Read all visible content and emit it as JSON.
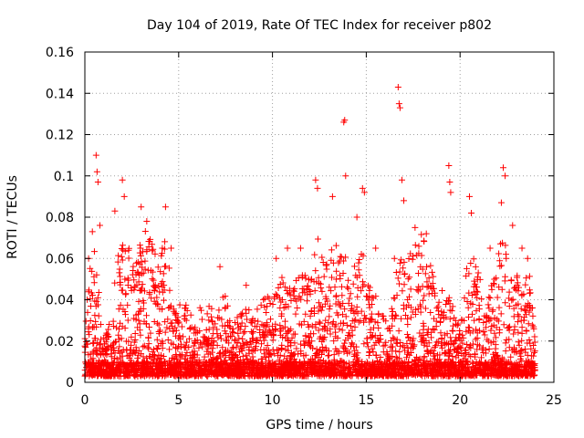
{
  "chart_data": {
    "type": "scatter",
    "title": "Day 104 of 2019, Rate Of TEC Index for receiver p802",
    "xlabel": "GPS time / hours",
    "ylabel": "ROTI / TECUs",
    "xlim": [
      0,
      25
    ],
    "ylim": [
      0,
      0.16
    ],
    "x_ticks": [
      0,
      5,
      10,
      15,
      20,
      25
    ],
    "x_tick_labels": [
      "0",
      "5",
      "10",
      "15",
      "20",
      "25"
    ],
    "y_ticks": [
      0,
      0.02,
      0.04,
      0.06,
      0.08,
      0.1,
      0.12,
      0.14,
      0.16
    ],
    "y_tick_labels": [
      "0",
      "0.02",
      "0.04",
      "0.06",
      "0.08",
      "0.1",
      "0.12",
      "0.14",
      "0.16"
    ],
    "grid": true,
    "marker": "+",
    "series": [
      {
        "name": "ROTI",
        "color": "#ff0000",
        "x_range": [
          0,
          24
        ],
        "baseline_range": [
          0.003,
          0.01
        ],
        "points": [
          {
            "x": 0.2,
            "y": 0.06
          },
          {
            "x": 0.4,
            "y": 0.073
          },
          {
            "x": 0.6,
            "y": 0.11
          },
          {
            "x": 0.65,
            "y": 0.102
          },
          {
            "x": 0.7,
            "y": 0.097
          },
          {
            "x": 0.8,
            "y": 0.076
          },
          {
            "x": 1.6,
            "y": 0.083
          },
          {
            "x": 2.0,
            "y": 0.098
          },
          {
            "x": 2.1,
            "y": 0.09
          },
          {
            "x": 3.0,
            "y": 0.085
          },
          {
            "x": 3.3,
            "y": 0.078
          },
          {
            "x": 4.3,
            "y": 0.085
          },
          {
            "x": 4.6,
            "y": 0.065
          },
          {
            "x": 7.2,
            "y": 0.056
          },
          {
            "x": 8.6,
            "y": 0.047
          },
          {
            "x": 10.2,
            "y": 0.06
          },
          {
            "x": 10.8,
            "y": 0.065
          },
          {
            "x": 11.5,
            "y": 0.065
          },
          {
            "x": 12.3,
            "y": 0.098
          },
          {
            "x": 12.4,
            "y": 0.094
          },
          {
            "x": 13.2,
            "y": 0.09
          },
          {
            "x": 13.8,
            "y": 0.126
          },
          {
            "x": 13.85,
            "y": 0.127
          },
          {
            "x": 13.9,
            "y": 0.1
          },
          {
            "x": 14.5,
            "y": 0.08
          },
          {
            "x": 14.8,
            "y": 0.094
          },
          {
            "x": 14.9,
            "y": 0.092
          },
          {
            "x": 15.5,
            "y": 0.065
          },
          {
            "x": 16.5,
            "y": 0.06
          },
          {
            "x": 16.7,
            "y": 0.143
          },
          {
            "x": 16.75,
            "y": 0.135
          },
          {
            "x": 16.8,
            "y": 0.133
          },
          {
            "x": 16.9,
            "y": 0.098
          },
          {
            "x": 17.0,
            "y": 0.088
          },
          {
            "x": 17.6,
            "y": 0.075
          },
          {
            "x": 18.2,
            "y": 0.072
          },
          {
            "x": 19.4,
            "y": 0.105
          },
          {
            "x": 19.45,
            "y": 0.097
          },
          {
            "x": 19.5,
            "y": 0.092
          },
          {
            "x": 20.5,
            "y": 0.09
          },
          {
            "x": 20.6,
            "y": 0.082
          },
          {
            "x": 21.6,
            "y": 0.065
          },
          {
            "x": 22.2,
            "y": 0.087
          },
          {
            "x": 22.3,
            "y": 0.104
          },
          {
            "x": 22.4,
            "y": 0.1
          },
          {
            "x": 22.8,
            "y": 0.076
          },
          {
            "x": 23.3,
            "y": 0.065
          },
          {
            "x": 23.6,
            "y": 0.06
          }
        ],
        "envelope": [
          [
            0.0,
            0.03
          ],
          [
            0.3,
            0.058
          ],
          [
            0.6,
            0.07
          ],
          [
            0.9,
            0.02
          ],
          [
            1.3,
            0.03
          ],
          [
            1.8,
            0.065
          ],
          [
            2.2,
            0.07
          ],
          [
            2.7,
            0.06
          ],
          [
            3.2,
            0.075
          ],
          [
            3.8,
            0.065
          ],
          [
            4.3,
            0.07
          ],
          [
            4.8,
            0.035
          ],
          [
            5.3,
            0.04
          ],
          [
            5.8,
            0.03
          ],
          [
            6.3,
            0.04
          ],
          [
            7.0,
            0.035
          ],
          [
            7.4,
            0.05
          ],
          [
            7.8,
            0.025
          ],
          [
            8.5,
            0.04
          ],
          [
            9.0,
            0.03
          ],
          [
            9.5,
            0.045
          ],
          [
            10.0,
            0.04
          ],
          [
            10.5,
            0.055
          ],
          [
            11.0,
            0.045
          ],
          [
            11.5,
            0.055
          ],
          [
            12.0,
            0.05
          ],
          [
            12.4,
            0.075
          ],
          [
            12.8,
            0.055
          ],
          [
            13.3,
            0.07
          ],
          [
            13.8,
            0.07
          ],
          [
            14.3,
            0.06
          ],
          [
            14.8,
            0.07
          ],
          [
            15.3,
            0.045
          ],
          [
            15.8,
            0.04
          ],
          [
            16.3,
            0.03
          ],
          [
            16.7,
            0.07
          ],
          [
            17.2,
            0.06
          ],
          [
            17.6,
            0.07
          ],
          [
            18.0,
            0.072
          ],
          [
            18.5,
            0.055
          ],
          [
            19.0,
            0.045
          ],
          [
            19.5,
            0.045
          ],
          [
            20.0,
            0.025
          ],
          [
            20.4,
            0.06
          ],
          [
            20.8,
            0.065
          ],
          [
            21.3,
            0.04
          ],
          [
            21.8,
            0.05
          ],
          [
            22.3,
            0.075
          ],
          [
            22.8,
            0.055
          ],
          [
            23.3,
            0.05
          ],
          [
            23.7,
            0.055
          ],
          [
            24.0,
            0.02
          ]
        ]
      }
    ]
  }
}
